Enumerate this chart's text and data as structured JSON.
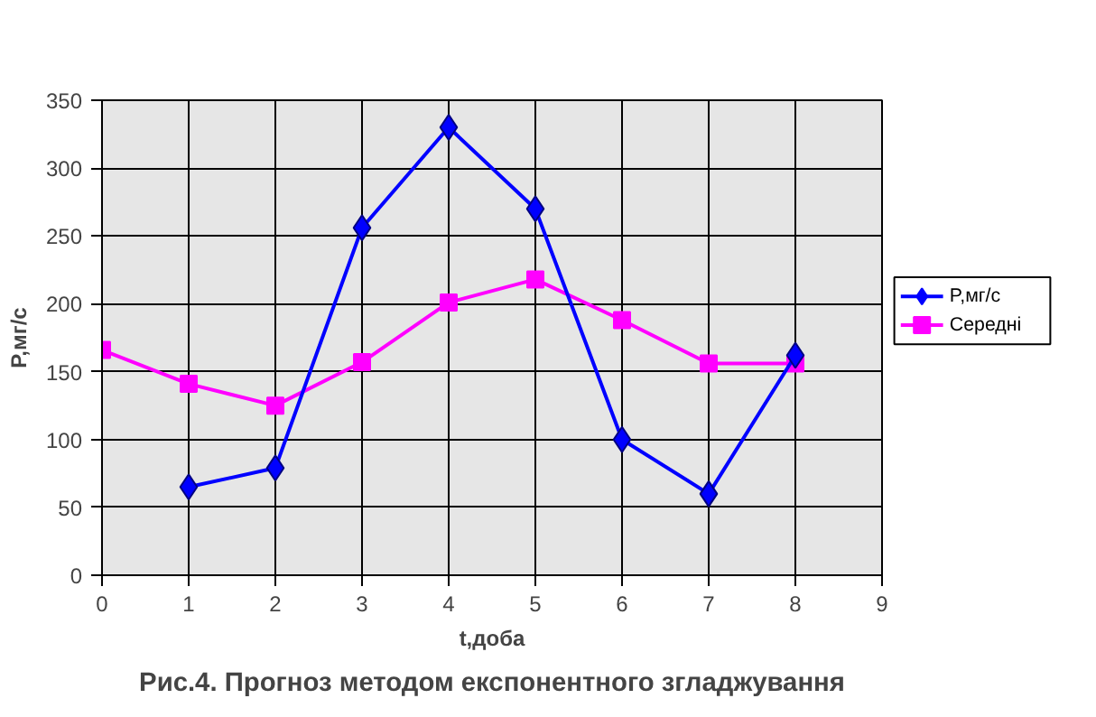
{
  "chart_data": {
    "type": "line",
    "title": "Рис.4. Прогноз методом експонентного згладжування",
    "xlabel": "t,доба",
    "ylabel": "P,мг/с",
    "xlim": [
      0,
      9
    ],
    "xticks": [
      0,
      1,
      2,
      3,
      4,
      5,
      6,
      7,
      8,
      9
    ],
    "ylim": [
      0,
      350
    ],
    "yticks": [
      0,
      50,
      100,
      150,
      200,
      250,
      300,
      350
    ],
    "grid": true,
    "legend": "right",
    "line_style": "solid",
    "series": [
      {
        "name": "P,мг/с",
        "color": "#0000ff",
        "marker": "diamond",
        "x": [
          1,
          2,
          3,
          4,
          5,
          6,
          7,
          8
        ],
        "values": [
          65,
          79,
          256,
          330,
          270,
          100,
          60,
          162
        ]
      },
      {
        "name": "Середні",
        "color": "#ff00ff",
        "marker": "square",
        "x": [
          0,
          1,
          2,
          3,
          4,
          5,
          6,
          7,
          8
        ],
        "values": [
          166,
          141,
          125,
          157,
          201,
          218,
          188,
          156,
          156
        ]
      }
    ]
  }
}
